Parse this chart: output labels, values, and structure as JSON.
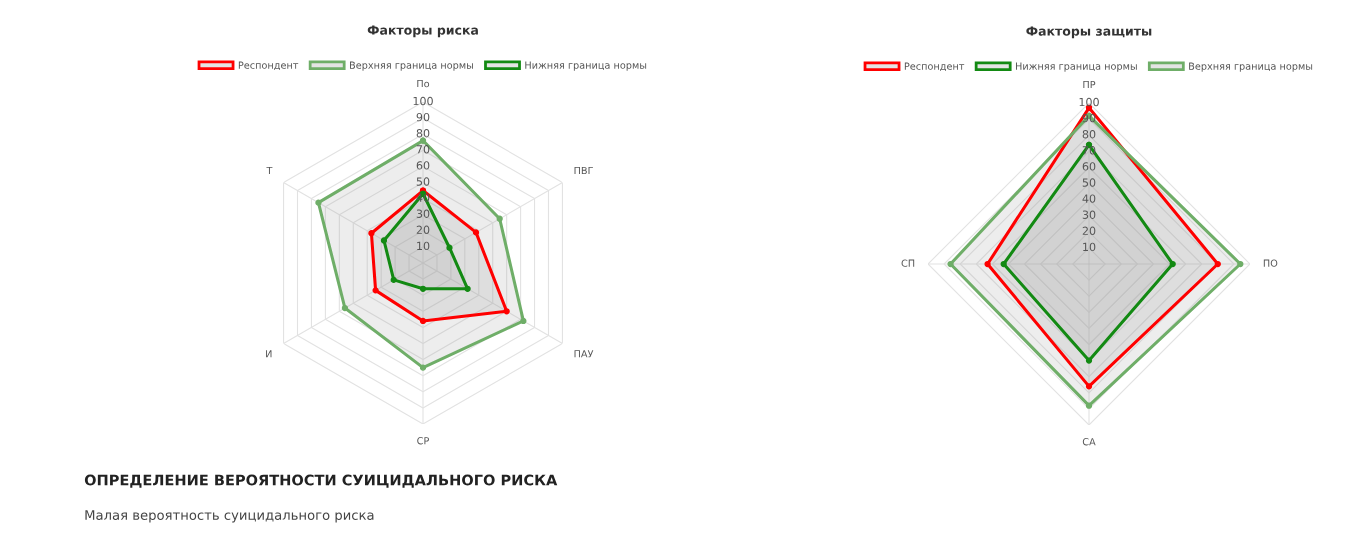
{
  "chart_data": [
    {
      "type": "radar",
      "title": "Факторы риска",
      "categories": [
        "По",
        "ПВГ",
        "ПАУ",
        "СР",
        "И",
        "Т"
      ],
      "ylim": [
        0,
        100
      ],
      "yticks": [
        10,
        20,
        30,
        40,
        50,
        60,
        70,
        80,
        90,
        100
      ],
      "legend": "top",
      "grid": true,
      "marker": "circle",
      "series": [
        {
          "name": "Респондент",
          "color": "#ff0000",
          "values": [
            45,
            38,
            60,
            36,
            34,
            37
          ]
        },
        {
          "name": "Верхняя граница нормы",
          "color": "#6fae68",
          "values": [
            76,
            55,
            72,
            65,
            56,
            75
          ]
        },
        {
          "name": "Нижняя граница нормы",
          "color": "#138a13",
          "values": [
            43,
            19,
            32,
            16,
            21,
            28
          ]
        }
      ]
    },
    {
      "type": "radar",
      "title": "Факторы защиты",
      "categories": [
        "ПР",
        "ПО",
        "СА",
        "СП"
      ],
      "ylim": [
        0,
        100
      ],
      "yticks": [
        10,
        20,
        30,
        40,
        50,
        60,
        70,
        80,
        90,
        100
      ],
      "legend": "top",
      "grid": true,
      "marker": "circle",
      "series": [
        {
          "name": "Респондент",
          "color": "#ff0000",
          "values": [
            97,
            80,
            76,
            63
          ]
        },
        {
          "name": "Нижняя граница нормы",
          "color": "#138a13",
          "values": [
            74,
            52,
            60,
            53
          ]
        },
        {
          "name": "Верхняя граница нормы",
          "color": "#6fae68",
          "values": [
            92,
            94,
            88,
            86
          ]
        }
      ]
    },
    {
      "type": "other",
      "title": "ОПРЕДЕЛЕНИЕ ВЕРОЯТНОСТИ СУИЦИДАЛЬНОГО РИСКА",
      "annotations": [
        "Малая вероятность суицидального риска"
      ]
    }
  ]
}
